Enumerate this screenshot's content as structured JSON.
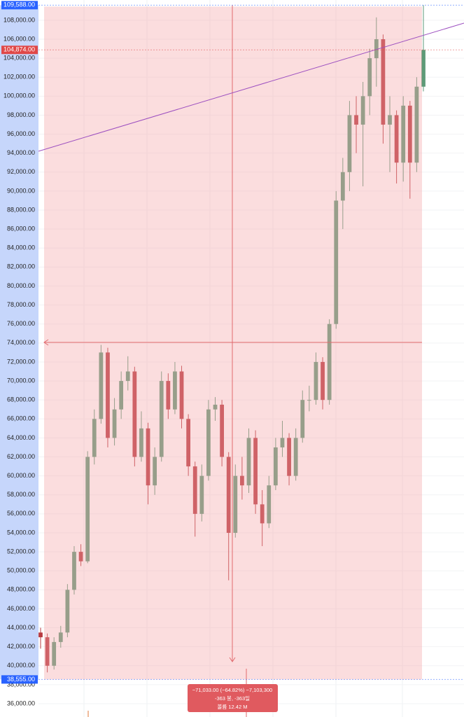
{
  "chart_data": {
    "type": "candlestick",
    "ylim": [
      34600,
      110130
    ],
    "yticks": [
      {
        "value": 36000,
        "label": "36,000.00"
      },
      {
        "value": 38000,
        "label": "38,000.00"
      },
      {
        "value": 40000,
        "label": "40,000.00"
      },
      {
        "value": 42000,
        "label": "42,000.00"
      },
      {
        "value": 44000,
        "label": "44,000.00"
      },
      {
        "value": 46000,
        "label": "46,000.00"
      },
      {
        "value": 48000,
        "label": "48,000.00"
      },
      {
        "value": 50000,
        "label": "50,000.00"
      },
      {
        "value": 52000,
        "label": "52,000.00"
      },
      {
        "value": 54000,
        "label": "54,000.00"
      },
      {
        "value": 56000,
        "label": "56,000.00"
      },
      {
        "value": 58000,
        "label": "58,000.00"
      },
      {
        "value": 60000,
        "label": "60,000.00"
      },
      {
        "value": 62000,
        "label": "62,000.00"
      },
      {
        "value": 64000,
        "label": "64,000.00"
      },
      {
        "value": 66000,
        "label": "66,000.00"
      },
      {
        "value": 68000,
        "label": "68,000.00"
      },
      {
        "value": 70000,
        "label": "70,000.00"
      },
      {
        "value": 72000,
        "label": "72,000.00"
      },
      {
        "value": 74000,
        "label": "74,000.00"
      },
      {
        "value": 76000,
        "label": "76,000.00"
      },
      {
        "value": 78000,
        "label": "78,000.00"
      },
      {
        "value": 80000,
        "label": "80,000.00"
      },
      {
        "value": 82000,
        "label": "82,000.00"
      },
      {
        "value": 84000,
        "label": "84,000.00"
      },
      {
        "value": 86000,
        "label": "86,000.00"
      },
      {
        "value": 88000,
        "label": "88,000.00"
      },
      {
        "value": 90000,
        "label": "90,000.00"
      },
      {
        "value": 92000,
        "label": "92,000.00"
      },
      {
        "value": 94000,
        "label": "94,000.00"
      },
      {
        "value": 96000,
        "label": "96,000.00"
      },
      {
        "value": 98000,
        "label": "98,000.00"
      },
      {
        "value": 100000,
        "label": "100,000.00"
      },
      {
        "value": 102000,
        "label": "102,000.00"
      },
      {
        "value": 104000,
        "label": "104,000.00"
      },
      {
        "value": 106000,
        "label": "106,000.00"
      },
      {
        "value": 108000,
        "label": "108,000.00"
      }
    ],
    "price_labels": [
      {
        "value": 109588,
        "label": "109,588.00",
        "color": "#2962ff"
      },
      {
        "value": 104874,
        "label": "104,874.00",
        "color": "#e04848"
      },
      {
        "value": 38555,
        "label": "38,555.00",
        "color": "#2962ff"
      }
    ],
    "up_color": "#5e9a78",
    "down_color": "#b8393f",
    "open": [
      43500,
      43000,
      40000,
      42500,
      43500,
      48000,
      52000,
      51000,
      62000,
      66000,
      73000,
      64000,
      67000,
      70000,
      71000,
      62000,
      65000,
      59000,
      62000,
      70000,
      67000,
      71000,
      66000,
      61000,
      56000,
      60000,
      67000,
      67500,
      62000,
      54000,
      60000,
      59000,
      64000,
      57000,
      55000,
      59000,
      63000,
      64000,
      60000,
      64000,
      68000,
      68000,
      72000,
      68000,
      76000,
      89000,
      92000,
      98000,
      97000,
      100000,
      104000,
      106000,
      97000,
      98000,
      93000,
      99000,
      93000,
      101000
    ],
    "high": [
      44000,
      43400,
      43000,
      44200,
      48600,
      52600,
      52800,
      62600,
      67000,
      73800,
      73500,
      68200,
      71000,
      72600,
      71500,
      66800,
      65600,
      63000,
      71000,
      70800,
      72000,
      71600,
      66500,
      61500,
      61200,
      68000,
      68300,
      68000,
      62500,
      61200,
      62000,
      65000,
      64800,
      58500,
      60000,
      64000,
      65800,
      64500,
      65000,
      69000,
      69500,
      73000,
      72500,
      76500,
      90000,
      93500,
      99500,
      100000,
      101500,
      105000,
      108300,
      106500,
      100000,
      98500,
      100000,
      99500,
      102000,
      109588
    ],
    "low": [
      41800,
      39300,
      39600,
      41900,
      43000,
      47500,
      50500,
      50800,
      61200,
      65500,
      63000,
      63200,
      66000,
      69000,
      61000,
      61500,
      57000,
      58000,
      61500,
      66000,
      66500,
      65000,
      60000,
      53600,
      55200,
      59500,
      65800,
      61000,
      49000,
      53500,
      57500,
      58200,
      56000,
      52600,
      54500,
      58500,
      62000,
      59000,
      59500,
      63500,
      66800,
      67500,
      67000,
      67500,
      75500,
      86000,
      90000,
      94000,
      90500,
      98000,
      101000,
      95000,
      92000,
      90800,
      91000,
      89200,
      92000,
      100500
    ],
    "close": [
      43000,
      40000,
      42500,
      43500,
      48000,
      52000,
      51000,
      62000,
      66000,
      73000,
      64000,
      67000,
      70000,
      71000,
      62000,
      65000,
      59000,
      62000,
      70000,
      67000,
      71000,
      66000,
      61000,
      56000,
      60000,
      67000,
      67500,
      62000,
      54000,
      60000,
      59000,
      64000,
      57000,
      55000,
      59000,
      63000,
      64000,
      60000,
      64000,
      68000,
      68000,
      72000,
      68000,
      76000,
      89000,
      92000,
      98000,
      97000,
      100000,
      104000,
      106000,
      97000,
      98000,
      93000,
      99000,
      93000,
      101000,
      104874
    ],
    "measure": [
      "−71,033.00 (−64.82%) −7,103,300",
      "-363 봉, -363일",
      "볼륨 12.42 M"
    ]
  }
}
